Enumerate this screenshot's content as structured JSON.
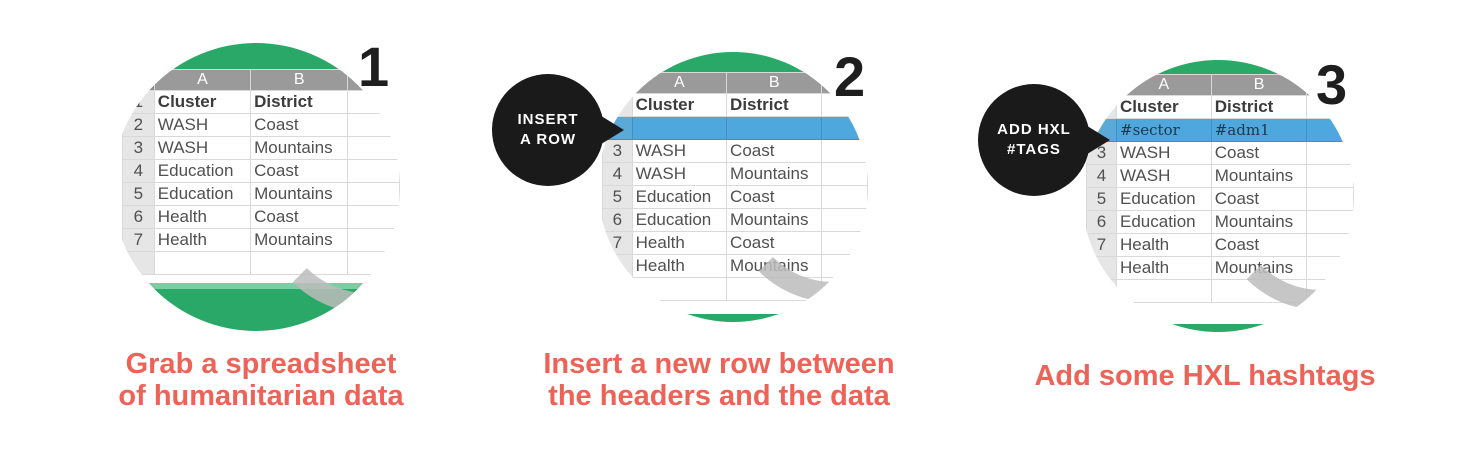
{
  "steps": [
    {
      "number": "1",
      "bubble": "",
      "caption_line1": "Grab a spreadsheet",
      "caption_line2": "of humanitarian data",
      "col_headers": [
        "A",
        "B"
      ],
      "rows": [
        {
          "n": "1",
          "a": "Cluster",
          "b": "District"
        },
        {
          "n": "2",
          "a": "WASH",
          "b": "Coast"
        },
        {
          "n": "3",
          "a": "WASH",
          "b": "Mountains"
        },
        {
          "n": "4",
          "a": "Education",
          "b": "Coast"
        },
        {
          "n": "5",
          "a": "Education",
          "b": "Mountains"
        },
        {
          "n": "6",
          "a": "Health",
          "b": "Coast"
        },
        {
          "n": "7",
          "a": "Health",
          "b": "Mountains"
        }
      ]
    },
    {
      "number": "2",
      "bubble": "INSERT\nA ROW",
      "caption_line1": "Insert a new row between",
      "caption_line2": "the headers and the data",
      "col_headers": [
        "A",
        "B"
      ],
      "rows": [
        {
          "n": "",
          "a": "Cluster",
          "b": "District"
        },
        {
          "n": "",
          "a": "",
          "b": ""
        },
        {
          "n": "3",
          "a": "WASH",
          "b": "Coast"
        },
        {
          "n": "4",
          "a": "WASH",
          "b": "Mountains"
        },
        {
          "n": "5",
          "a": "Education",
          "b": "Coast"
        },
        {
          "n": "6",
          "a": "Education",
          "b": "Mountains"
        },
        {
          "n": "7",
          "a": "Health",
          "b": "Coast"
        },
        {
          "n": "",
          "a": "Health",
          "b": "Mountains"
        }
      ]
    },
    {
      "number": "3",
      "bubble": "ADD HXL\n#TAGS",
      "caption_line1": "Add some HXL hashtags",
      "caption_line2": "",
      "col_headers": [
        "A",
        "B"
      ],
      "rows": [
        {
          "n": "",
          "a": "Cluster",
          "b": "District"
        },
        {
          "n": "",
          "a": "#sector",
          "b": "#adm1"
        },
        {
          "n": "3",
          "a": "WASH",
          "b": "Coast"
        },
        {
          "n": "4",
          "a": "WASH",
          "b": "Mountains"
        },
        {
          "n": "5",
          "a": "Education",
          "b": "Coast"
        },
        {
          "n": "6",
          "a": "Education",
          "b": "Mountains"
        },
        {
          "n": "7",
          "a": "Health",
          "b": "Coast"
        },
        {
          "n": "",
          "a": "Health",
          "b": "Mountains"
        }
      ]
    }
  ],
  "colors": {
    "green": "#2aa868",
    "blue": "#4ea8dd",
    "caption": "#ee6357",
    "bubble": "#1a1a1a"
  }
}
